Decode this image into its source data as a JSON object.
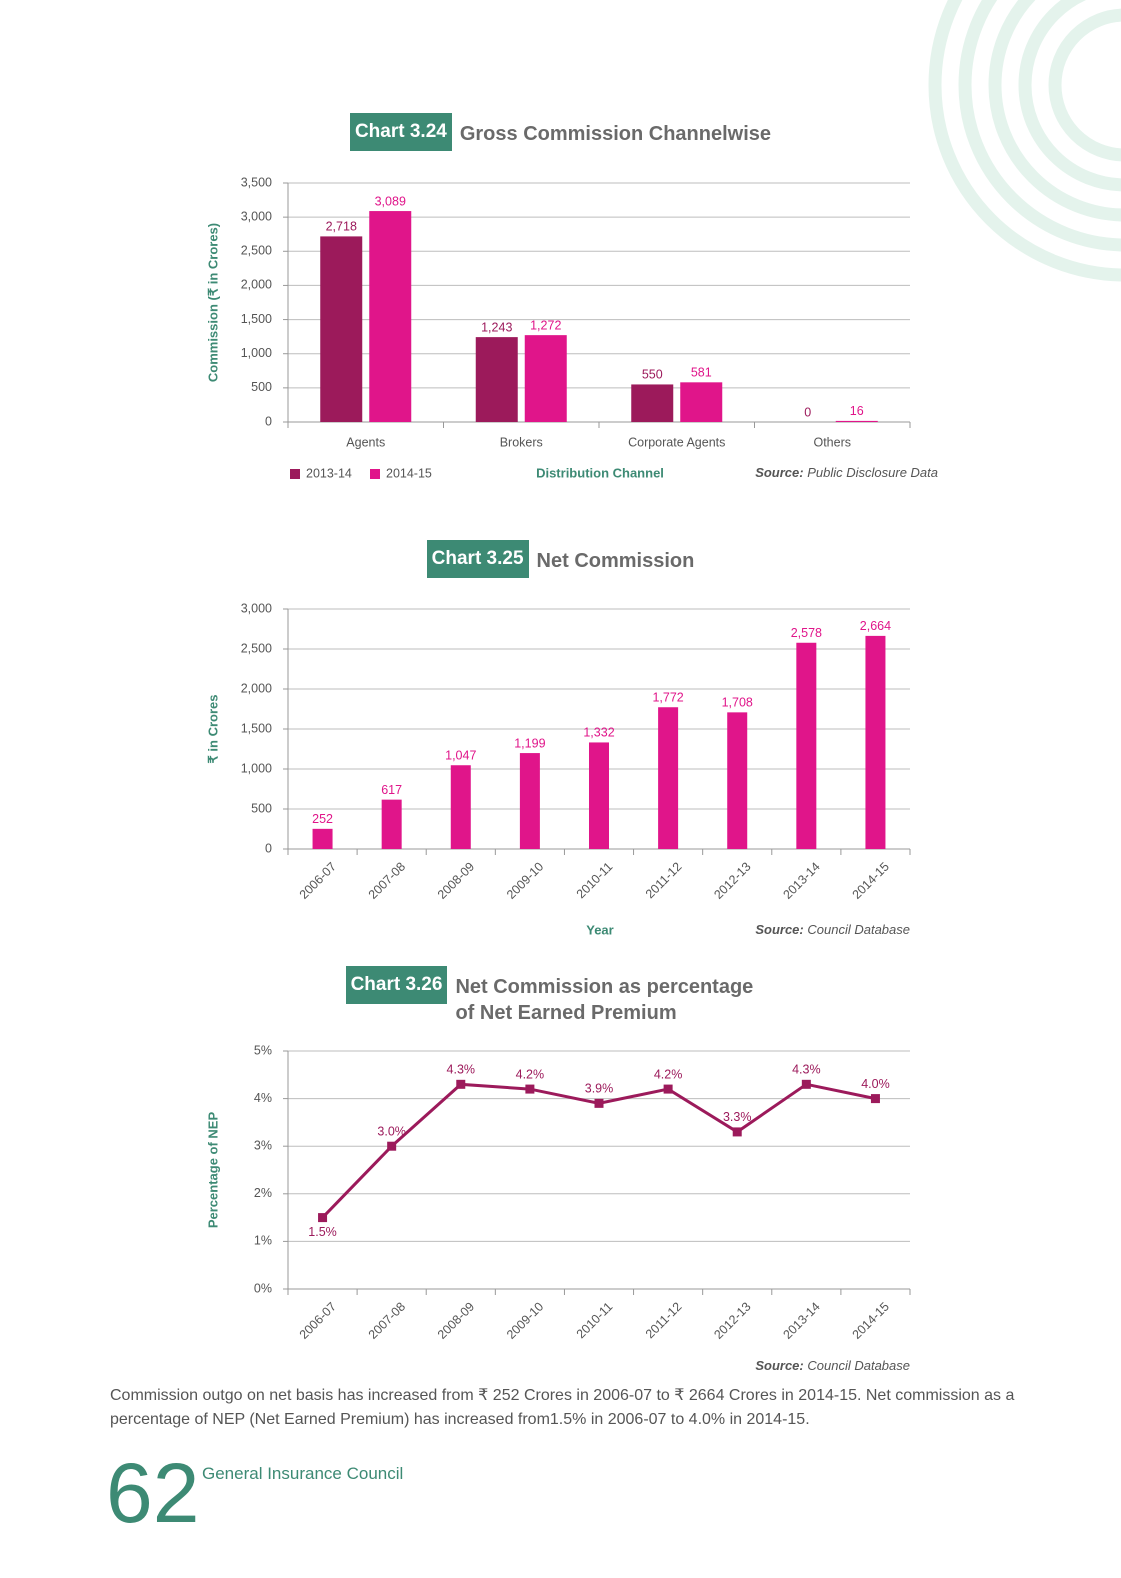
{
  "chart_data": [
    {
      "type": "bar",
      "label": "Chart 3.24",
      "title": "Gross Commission Channelwise",
      "y_label": "Commission (₹ in Crores)",
      "x_label": "Distribution Channel",
      "source_label": "Source:",
      "source": "Public Disclosure Data",
      "categories": [
        "Agents",
        "Brokers",
        "Corporate Agents",
        "Others"
      ],
      "series": [
        {
          "name": "2013-14",
          "color": "#9c1a5b",
          "values": [
            2718,
            1243,
            550,
            0
          ],
          "value_labels": [
            "2,718",
            "1,243",
            "550",
            "0"
          ]
        },
        {
          "name": "2014-15",
          "color": "#e0158a",
          "values": [
            3089,
            1272,
            581,
            16
          ],
          "value_labels": [
            "3,089",
            "1,272",
            "581",
            "16"
          ]
        }
      ],
      "ylim": [
        0,
        3500
      ],
      "yticks": [
        0,
        500,
        {
          "value": 1000,
          "label": "1,000"
        },
        {
          "value": 1500,
          "label": "1,500"
        },
        {
          "value": 2000,
          "label": "2,000"
        },
        {
          "value": 2500,
          "label": "2,500"
        },
        {
          "value": 3000,
          "label": "3,000"
        },
        {
          "value": 3500,
          "label": "3,500"
        }
      ],
      "grid": true,
      "legend": "bottom-left"
    },
    {
      "type": "bar",
      "label": "Chart 3.25",
      "title": "Net Commission",
      "y_label": "₹ in Crores",
      "x_label": "Year",
      "source_label": "Source:",
      "source": "Council Database",
      "categories": [
        "2006-07",
        "2007-08",
        "2008-09",
        "2009-10",
        "2010-11",
        "2011-12",
        "2012-13",
        "2013-14",
        "2014-15"
      ],
      "values": [
        252,
        617,
        1047,
        1199,
        1332,
        1772,
        1708,
        2578,
        2664
      ],
      "value_labels": [
        "252",
        "617",
        "1,047",
        "1,199",
        "1,332",
        "1,772",
        "1,708",
        "2,578",
        "2,664"
      ],
      "color": "#e0158a",
      "ylim": [
        0,
        3000
      ],
      "yticks": [
        0,
        500,
        {
          "value": 1000,
          "label": "1,000"
        },
        {
          "value": 1500,
          "label": "1,500"
        },
        {
          "value": 2000,
          "label": "2,000"
        },
        {
          "value": 2500,
          "label": "2,500"
        },
        {
          "value": 3000,
          "label": "3,000"
        }
      ],
      "grid": true
    },
    {
      "type": "line",
      "label": "Chart 3.26",
      "title": "Net Commission as percentage of Net Earned Premium",
      "y_label": "Percentage of NEP",
      "source_label": "Source:",
      "source": "Council Database",
      "categories": [
        "2006-07",
        "2007-08",
        "2008-09",
        "2009-10",
        "2010-11",
        "2011-12",
        "2012-13",
        "2013-14",
        "2014-15"
      ],
      "values": [
        1.5,
        3.0,
        4.3,
        4.2,
        3.9,
        4.2,
        3.3,
        4.3,
        4.0
      ],
      "value_labels": [
        "1.5%",
        "3.0%",
        "4.3%",
        "4.2%",
        "3.9%",
        "4.2%",
        "3.3%",
        "4.3%",
        "4.0%"
      ],
      "color": "#9c1a5b",
      "ylim": [
        0,
        5
      ],
      "yticks": [
        {
          "value": 0,
          "label": "0%"
        },
        {
          "value": 1,
          "label": "1%"
        },
        {
          "value": 2,
          "label": "2%"
        },
        {
          "value": 3,
          "label": "3%"
        },
        {
          "value": 4,
          "label": "4%"
        },
        {
          "value": 5,
          "label": "5%"
        }
      ],
      "grid": true
    }
  ],
  "paragraph": "Commission outgo on net basis has increased from ₹ 252 Crores in 2006-07 to ₹ 2664 Crores in 2014-15. Net commission as a percentage of NEP (Net Earned Premium) has increased from1.5% in 2006-07 to 4.0% in 2014-15.",
  "page_number": "62",
  "footer": "General Insurance Council"
}
